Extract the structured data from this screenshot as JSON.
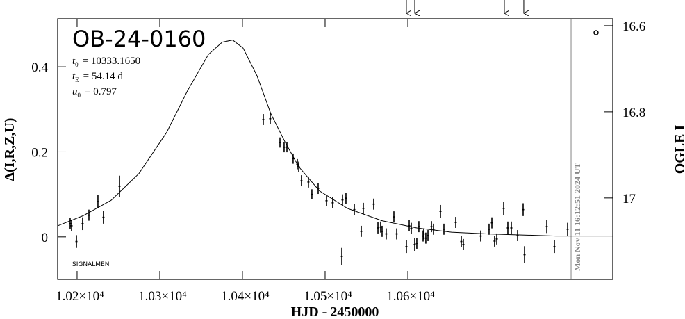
{
  "chart_data": {
    "type": "scatter",
    "title": "OB-24-0160",
    "parameters": [
      {
        "symbol": "t",
        "subscript": "0",
        "value": "= 10333.1650"
      },
      {
        "symbol": "t",
        "subscript": "E",
        "value": "= 54.14 d"
      },
      {
        "symbol": "u",
        "subscript": "0",
        "value": "= 0.797"
      }
    ],
    "source": "SIGNALMEN",
    "timestamp": "Mon Nov 11 16:12:51 2024 UT",
    "x_label": "HJD - 2450000",
    "y_label": "Δ(I,R,Z,U)",
    "y2_label": "OGLE I",
    "color": "#000000",
    "now_line_color": "#999999",
    "xlim": [
      10176.5,
      10847.9
    ],
    "ylim": [
      -0.1,
      0.513
    ],
    "y2lim": [
      17.189,
      16.584
    ],
    "xticks": [
      {
        "value": 10200,
        "label": "1.02×10⁴"
      },
      {
        "value": 10300,
        "label": "1.03×10⁴"
      },
      {
        "value": 10400,
        "label": "1.04×10⁴"
      },
      {
        "value": 10500,
        "label": "1.05×10⁴"
      },
      {
        "value": 10600,
        "label": "1.06×10⁴"
      }
    ],
    "yticks": [
      0,
      0.2,
      0.4
    ],
    "y2ticks": [
      16.6,
      16.8,
      17
    ],
    "now_line": 10797.5,
    "arrows": [
      10598.3,
      10608.4,
      10716.8,
      10740.3
    ],
    "points": {
      "x": [
        10191.6,
        10193.3,
        10199.2,
        10206.7,
        10214.3,
        10225.2,
        10231.9,
        10251.3,
        10425.2,
        10433.6,
        10445.4,
        10450.4,
        10453.8,
        10461.3,
        10466.4,
        10468.1,
        10471.4,
        10479.8,
        10484.0,
        10491.6,
        10501.7,
        10509.2,
        10521.0,
        10525.2,
        10520.2,
        10535.3,
        10543.7,
        10546.2,
        10558.8,
        10563.9,
        10567.2,
        10568.9,
        10573.9,
        10583.2,
        10586.6,
        10598.3,
        10601.7,
        10604.2,
        10608.4,
        10610.9,
        10613.4,
        10618.5,
        10619.3,
        10621.8,
        10624.4,
        10628.6,
        10631.1,
        10639.5,
        10643.7,
        10658.0,
        10664.7,
        10667.2,
        10688.2,
        10698.3,
        10701.7,
        10705.0,
        10707.6,
        10716.0,
        10721.0,
        10725.2,
        10732.8,
        10739.5,
        10741.2,
        10768.1,
        10777.3,
        10793.3
      ],
      "y": [
        0.031,
        0.026,
        -0.011,
        0.031,
        0.051,
        0.083,
        0.046,
        0.119,
        0.276,
        0.278,
        0.222,
        0.211,
        0.211,
        0.184,
        0.171,
        0.165,
        0.132,
        0.129,
        0.1,
        0.114,
        0.085,
        0.08,
        0.087,
        0.091,
        -0.046,
        0.064,
        0.013,
        0.067,
        0.077,
        0.021,
        0.023,
        0.013,
        0.007,
        0.047,
        0.007,
        -0.023,
        0.026,
        0.02,
        -0.018,
        -0.015,
        0.024,
        0.002,
        0.007,
        -0.003,
        0.003,
        0.024,
        0.018,
        0.06,
        0.018,
        0.034,
        -0.011,
        -0.018,
        0.002,
        0.018,
        0.033,
        -0.01,
        -0.005,
        0.067,
        0.021,
        0.021,
        0.003,
        0.064,
        -0.042,
        0.024,
        -0.023,
        0.018
      ],
      "errors": [
        0.013,
        0.013,
        0.015,
        0.015,
        0.013,
        0.015,
        0.015,
        0.025,
        0.013,
        0.013,
        0.012,
        0.012,
        0.012,
        0.012,
        0.012,
        0.012,
        0.013,
        0.013,
        0.012,
        0.013,
        0.013,
        0.013,
        0.013,
        0.013,
        0.02,
        0.013,
        0.013,
        0.013,
        0.013,
        0.013,
        0.013,
        0.013,
        0.013,
        0.013,
        0.013,
        0.015,
        0.013,
        0.013,
        0.015,
        0.013,
        0.013,
        0.013,
        0.013,
        0.013,
        0.013,
        0.013,
        0.013,
        0.015,
        0.013,
        0.013,
        0.013,
        0.013,
        0.013,
        0.013,
        0.013,
        0.013,
        0.013,
        0.015,
        0.015,
        0.015,
        0.013,
        0.015,
        0.02,
        0.015,
        0.015,
        0.015
      ]
    },
    "model": {
      "x": [
        10176.5,
        10207.6,
        10241.2,
        10274.8,
        10308.4,
        10333.6,
        10358.8,
        10375.6,
        10388.2,
        10400.8,
        10417.6,
        10434.5,
        10451.3,
        10468.1,
        10493.3,
        10526.9,
        10568.9,
        10610.9,
        10652.9,
        10695.0,
        10779.0,
        10847.9
      ],
      "y": [
        0.026,
        0.05,
        0.086,
        0.149,
        0.246,
        0.344,
        0.429,
        0.458,
        0.463,
        0.444,
        0.379,
        0.289,
        0.224,
        0.165,
        0.108,
        0.067,
        0.038,
        0.021,
        0.011,
        0.007,
        0.002,
        0.002
      ]
    }
  }
}
